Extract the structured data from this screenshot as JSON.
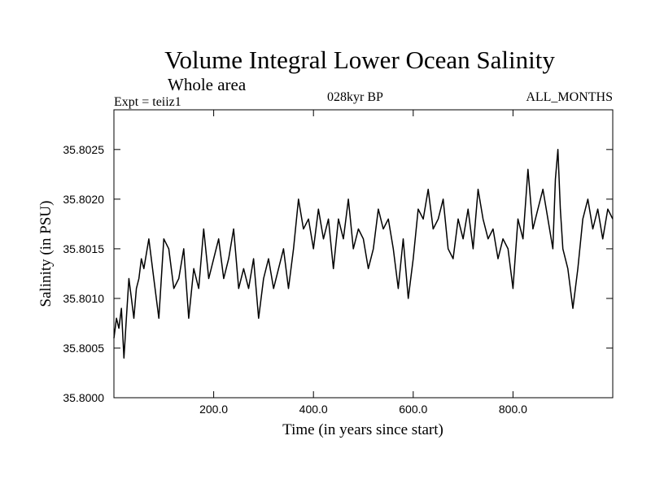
{
  "chart_data": {
    "type": "line",
    "title": "Volume Integral Lower Ocean Salinity",
    "subtitle": "Whole area",
    "left_label": "Expt = teiiz1",
    "center_label": "028kyr BP",
    "right_label": "ALL_MONTHS",
    "xlabel": "Time (in years since start)",
    "ylabel": "Salinity (in PSU)",
    "xlim": [
      0,
      1000
    ],
    "ylim": [
      35.8,
      35.8029
    ],
    "xticks": [
      200,
      400,
      600,
      800
    ],
    "xtick_labels": [
      "200.0",
      "400.0",
      "600.0",
      "800.0"
    ],
    "yticks": [
      35.8,
      35.8005,
      35.801,
      35.8015,
      35.802,
      35.8025
    ],
    "ytick_labels": [
      "35.8000",
      "35.8005",
      "35.8010",
      "35.8015",
      "35.8020",
      "35.8025"
    ],
    "grid": false,
    "series": [
      {
        "color": "#000000",
        "x": [
          0,
          5,
          10,
          15,
          20,
          25,
          30,
          35,
          40,
          45,
          50,
          55,
          60,
          70,
          80,
          90,
          100,
          110,
          120,
          130,
          140,
          150,
          160,
          170,
          180,
          190,
          200,
          210,
          220,
          230,
          240,
          250,
          260,
          270,
          280,
          290,
          300,
          310,
          320,
          330,
          340,
          350,
          360,
          370,
          380,
          390,
          400,
          410,
          420,
          430,
          440,
          450,
          460,
          470,
          480,
          490,
          500,
          510,
          520,
          530,
          540,
          550,
          560,
          570,
          580,
          590,
          600,
          610,
          620,
          630,
          640,
          650,
          660,
          670,
          680,
          690,
          700,
          710,
          720,
          730,
          740,
          750,
          760,
          770,
          780,
          790,
          800,
          810,
          820,
          830,
          840,
          850,
          860,
          870,
          880,
          885,
          890,
          895,
          900,
          910,
          920,
          930,
          940,
          950,
          960,
          970,
          980,
          990,
          1000
        ],
        "y": [
          35.8006,
          35.8008,
          35.8007,
          35.8009,
          35.8004,
          35.8008,
          35.8012,
          35.801,
          35.8008,
          35.8011,
          35.8012,
          35.8014,
          35.8013,
          35.8016,
          35.8012,
          35.8008,
          35.8016,
          35.8015,
          35.8011,
          35.8012,
          35.8015,
          35.8008,
          35.8013,
          35.8011,
          35.8017,
          35.8012,
          35.8014,
          35.8016,
          35.8012,
          35.8014,
          35.8017,
          35.8011,
          35.8013,
          35.8011,
          35.8014,
          35.8008,
          35.8012,
          35.8014,
          35.8011,
          35.8013,
          35.8015,
          35.8011,
          35.8015,
          35.802,
          35.8017,
          35.8018,
          35.8015,
          35.8019,
          35.8016,
          35.8018,
          35.8013,
          35.8018,
          35.8016,
          35.802,
          35.8015,
          35.8017,
          35.8016,
          35.8013,
          35.8015,
          35.8019,
          35.8017,
          35.8018,
          35.8015,
          35.8011,
          35.8016,
          35.801,
          35.8014,
          35.8019,
          35.8018,
          35.8021,
          35.8017,
          35.8018,
          35.802,
          35.8015,
          35.8014,
          35.8018,
          35.8016,
          35.8019,
          35.8015,
          35.8021,
          35.8018,
          35.8016,
          35.8017,
          35.8014,
          35.8016,
          35.8015,
          35.8011,
          35.8018,
          35.8016,
          35.8023,
          35.8017,
          35.8019,
          35.8021,
          35.8018,
          35.8015,
          35.8022,
          35.8025,
          35.8019,
          35.8015,
          35.8013,
          35.8009,
          35.8013,
          35.8018,
          35.802,
          35.8017,
          35.8019,
          35.8016,
          35.8019,
          35.8018
        ]
      }
    ]
  }
}
